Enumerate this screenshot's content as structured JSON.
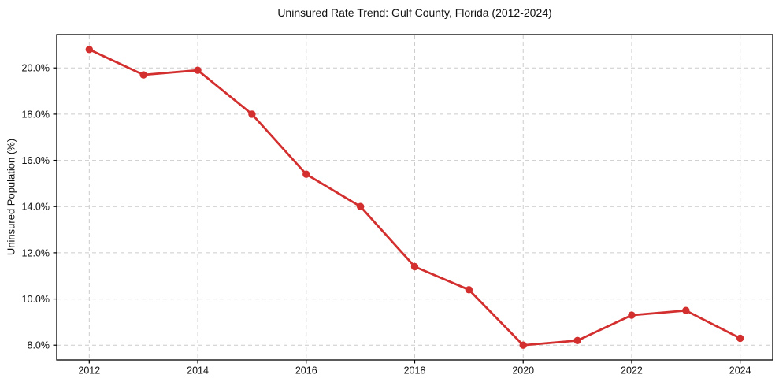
{
  "chart_data": {
    "type": "line",
    "title": "Uninsured Rate Trend: Gulf County, Florida (2012-2024)",
    "xlabel": "",
    "ylabel": "Uninsured Population (%)",
    "x": [
      2012,
      2013,
      2014,
      2015,
      2016,
      2017,
      2018,
      2019,
      2020,
      2021,
      2022,
      2023,
      2024
    ],
    "values": [
      20.8,
      19.7,
      19.9,
      18.0,
      15.4,
      14.0,
      11.4,
      10.4,
      8.0,
      8.2,
      9.3,
      9.5,
      8.3
    ],
    "xlim": [
      2011.4,
      2024.6
    ],
    "ylim": [
      7.36,
      21.44
    ],
    "x_ticks": [
      2012,
      2014,
      2016,
      2018,
      2020,
      2022,
      2024
    ],
    "x_tick_labels": [
      "2012",
      "2014",
      "2016",
      "2018",
      "2020",
      "2022",
      "2024"
    ],
    "y_ticks": [
      8,
      10,
      12,
      14,
      16,
      18,
      20
    ],
    "y_tick_labels": [
      "8.0%",
      "10.0%",
      "12.0%",
      "14.0%",
      "16.0%",
      "18.0%",
      "20.0%"
    ],
    "grid": true,
    "grid_style": "dashed",
    "legend": "none",
    "colors": {
      "line": "#d32f2f",
      "marker": "#d32f2f",
      "grid": "#cccccc",
      "spine": "#000000",
      "text": "#111111",
      "background": "#ffffff"
    }
  }
}
